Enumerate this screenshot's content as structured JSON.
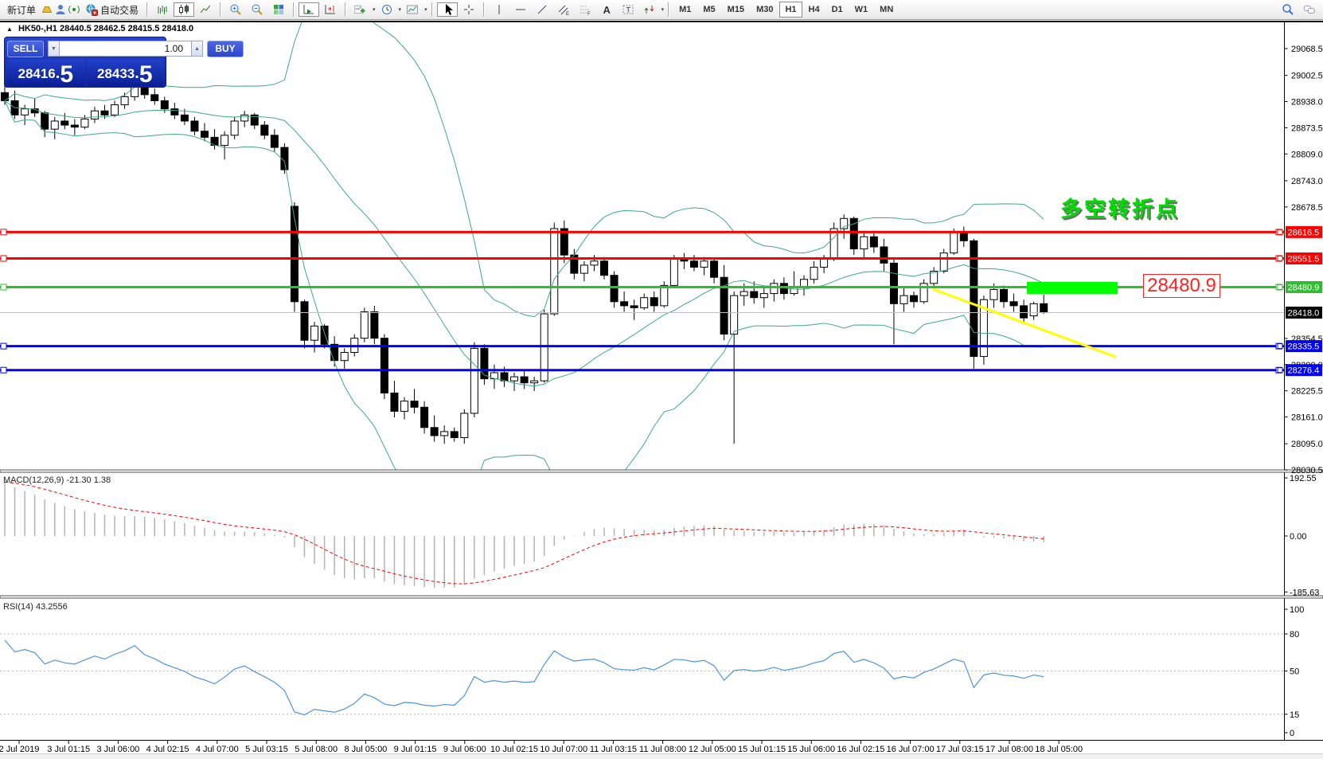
{
  "toolbar": {
    "new_order_label": "新订单",
    "auto_trading_label": "自动交易",
    "dropdown_icon": "▾",
    "timeframes": [
      "M1",
      "M5",
      "M15",
      "M30",
      "H1",
      "H4",
      "D1",
      "W1",
      "MN"
    ],
    "active_timeframe": "H1",
    "icon_names": [
      "gold-ingot-icon",
      "profile-icon",
      "signal-icon",
      "auto-trading-icon",
      "bar-chart-icon",
      "candlestick-chart-icon",
      "line-chart-icon",
      "zoom-in-icon",
      "zoom-out-icon",
      "tile-windows-icon",
      "auto-scroll-icon",
      "chart-shift-icon",
      "indicators-icon",
      "periods-icon",
      "templates-icon",
      "cursor-icon",
      "crosshair-icon",
      "vertical-line-icon",
      "horizontal-line-icon",
      "trendline-icon",
      "equidistant-channel-icon",
      "fibonacci-icon",
      "text-icon",
      "text-label-icon",
      "arrow-shapes-icon",
      "search-icon",
      "chat-icon"
    ]
  },
  "chart_window": {
    "collapse_icon": "▲",
    "symbol_period": "HK50-,H1",
    "ohlc_text": "28440.5 28462.5 28415.5 28418.0"
  },
  "trade_panel": {
    "sell_label": "SELL",
    "buy_label": "BUY",
    "volume": "1.00",
    "volume_down_icon": "▼",
    "volume_up_icon": "▲",
    "sell_price_int": "28416",
    "sell_price_frac": "5",
    "buy_price_int": "28433",
    "buy_price_frac": "5"
  },
  "annotations": {
    "turning_point_label": "多空转折点",
    "price_tag": "28480.9"
  },
  "panes": {
    "macd_label": "MACD(12,26,9) -21.30 1.38",
    "rsi_label": "RSI(14) 43.2556"
  },
  "chart_data": {
    "type": "candlestick",
    "symbol": "HK50-",
    "period": "H1",
    "current_ohlc": {
      "open": 28440.5,
      "high": 28462.5,
      "low": 28415.5,
      "close": 28418.0
    },
    "bid": 28416.5,
    "ask": 28433.5,
    "price_axis_ticks": [
      29068.5,
      29002.5,
      28938.0,
      28873.5,
      28809.0,
      28743.0,
      28678.5,
      28354.5,
      28290.0,
      28225.5,
      28161.0,
      28095.0,
      28030.5
    ],
    "hlines": [
      {
        "price": 28616.5,
        "color": "#ff0000",
        "width": 3
      },
      {
        "price": 28551.5,
        "color": "#ff0000",
        "width": 3
      },
      {
        "price": 28480.9,
        "color": "#2fbe2f",
        "width": 3
      },
      {
        "price": 28418.0,
        "color": "#c0c0c0",
        "width": 1,
        "tag_bg": "#000000"
      },
      {
        "price": 28335.5,
        "color": "#0000ff",
        "width": 3
      },
      {
        "price": 28276.4,
        "color": "#0000ff",
        "width": 3
      }
    ],
    "candles": [
      [
        28960,
        28990,
        28930,
        28940
      ],
      [
        28940,
        28965,
        28895,
        28905
      ],
      [
        28905,
        28930,
        28880,
        28920
      ],
      [
        28920,
        28945,
        28900,
        28910
      ],
      [
        28910,
        28915,
        28850,
        28870
      ],
      [
        28870,
        28900,
        28845,
        28890
      ],
      [
        28890,
        28910,
        28870,
        28880
      ],
      [
        28880,
        28895,
        28855,
        28875
      ],
      [
        28875,
        28905,
        28870,
        28895
      ],
      [
        28895,
        28925,
        28885,
        28915
      ],
      [
        28915,
        28930,
        28895,
        28905
      ],
      [
        28905,
        28940,
        28900,
        28930
      ],
      [
        28930,
        28960,
        28920,
        28950
      ],
      [
        28950,
        28995,
        28940,
        28985
      ],
      [
        28985,
        28990,
        28945,
        28955
      ],
      [
        28955,
        28970,
        28930,
        28940
      ],
      [
        28940,
        28950,
        28910,
        28920
      ],
      [
        28920,
        28935,
        28895,
        28905
      ],
      [
        28905,
        28920,
        28880,
        28890
      ],
      [
        28890,
        28900,
        28855,
        28865
      ],
      [
        28865,
        28885,
        28840,
        28850
      ],
      [
        28850,
        28870,
        28820,
        28830
      ],
      [
        28830,
        28865,
        28795,
        28855
      ],
      [
        28855,
        28900,
        28845,
        28890
      ],
      [
        28890,
        28915,
        28875,
        28905
      ],
      [
        28905,
        28910,
        28870,
        28880
      ],
      [
        28880,
        28890,
        28845,
        28855
      ],
      [
        28855,
        28870,
        28815,
        28825
      ],
      [
        28825,
        28835,
        28760,
        28770
      ],
      [
        28680,
        28690,
        28420,
        28445
      ],
      [
        28445,
        28450,
        28330,
        28350
      ],
      [
        28350,
        28395,
        28320,
        28385
      ],
      [
        28385,
        28390,
        28330,
        28340
      ],
      [
        28340,
        28360,
        28285,
        28300
      ],
      [
        28300,
        28330,
        28280,
        28320
      ],
      [
        28320,
        28365,
        28310,
        28355
      ],
      [
        28355,
        28430,
        28345,
        28420
      ],
      [
        28420,
        28435,
        28340,
        28355
      ],
      [
        28355,
        28365,
        28205,
        28220
      ],
      [
        28220,
        28250,
        28160,
        28175
      ],
      [
        28175,
        28210,
        28155,
        28200
      ],
      [
        28200,
        28230,
        28170,
        28185
      ],
      [
        28185,
        28200,
        28120,
        28135
      ],
      [
        28135,
        28165,
        28100,
        28115
      ],
      [
        28115,
        28140,
        28095,
        28125
      ],
      [
        28125,
        28135,
        28100,
        28110
      ],
      [
        28110,
        28180,
        28095,
        28170
      ],
      [
        28170,
        28345,
        28160,
        28330
      ],
      [
        28330,
        28340,
        28240,
        28255
      ],
      [
        28255,
        28290,
        28230,
        28270
      ],
      [
        28270,
        28285,
        28235,
        28250
      ],
      [
        28250,
        28270,
        28225,
        28260
      ],
      [
        28260,
        28275,
        28230,
        28245
      ],
      [
        28245,
        28260,
        28225,
        28250
      ],
      [
        28250,
        28425,
        28245,
        28415
      ],
      [
        28415,
        28640,
        28410,
        28625
      ],
      [
        28625,
        28645,
        28540,
        28560
      ],
      [
        28560,
        28575,
        28500,
        28515
      ],
      [
        28515,
        28545,
        28495,
        28535
      ],
      [
        28535,
        28560,
        28520,
        28545
      ],
      [
        28545,
        28555,
        28500,
        28510
      ],
      [
        28510,
        28520,
        28430,
        28445
      ],
      [
        28445,
        28470,
        28420,
        28435
      ],
      [
        28435,
        28450,
        28400,
        28430
      ],
      [
        28430,
        28465,
        28425,
        28455
      ],
      [
        28455,
        28470,
        28420,
        28435
      ],
      [
        28435,
        28495,
        28430,
        28485
      ],
      [
        28485,
        28560,
        28480,
        28550
      ],
      [
        28550,
        28565,
        28525,
        28545
      ],
      [
        28545,
        28560,
        28520,
        28530
      ],
      [
        28530,
        28555,
        28510,
        28545
      ],
      [
        28545,
        28550,
        28490,
        28505
      ],
      [
        28505,
        28535,
        28350,
        28365
      ],
      [
        28365,
        28470,
        28095,
        28460
      ],
      [
        28460,
        28490,
        28435,
        28470
      ],
      [
        28470,
        28495,
        28440,
        28455
      ],
      [
        28455,
        28480,
        28430,
        28465
      ],
      [
        28465,
        28500,
        28445,
        28490
      ],
      [
        28490,
        28505,
        28450,
        28465
      ],
      [
        28465,
        28520,
        28460,
        28480
      ],
      [
        28480,
        28510,
        28460,
        28500
      ],
      [
        28500,
        28545,
        28490,
        28530
      ],
      [
        28530,
        28560,
        28515,
        28550
      ],
      [
        28550,
        28640,
        28545,
        28625
      ],
      [
        28625,
        28660,
        28600,
        28650
      ],
      [
        28650,
        28655,
        28560,
        28575
      ],
      [
        28575,
        28615,
        28550,
        28605
      ],
      [
        28605,
        28620,
        28565,
        28580
      ],
      [
        28580,
        28600,
        28520,
        28540
      ],
      [
        28540,
        28550,
        28340,
        28440
      ],
      [
        28440,
        28480,
        28420,
        28460
      ],
      [
        28460,
        28470,
        28430,
        28445
      ],
      [
        28445,
        28500,
        28440,
        28490
      ],
      [
        28490,
        28530,
        28480,
        28520
      ],
      [
        28520,
        28575,
        28515,
        28565
      ],
      [
        28565,
        28625,
        28560,
        28615
      ],
      [
        28615,
        28630,
        28580,
        28595
      ],
      [
        28595,
        28600,
        28280,
        28310
      ],
      [
        28310,
        28460,
        28290,
        28450
      ],
      [
        28450,
        28490,
        28430,
        28475
      ],
      [
        28475,
        28485,
        28430,
        28445
      ],
      [
        28445,
        28465,
        28420,
        28435
      ],
      [
        28435,
        28450,
        28390,
        28405
      ],
      [
        28410,
        28445,
        28400,
        28440
      ],
      [
        28440,
        28462,
        28415,
        28418
      ]
    ],
    "bollinger": {
      "period": 20,
      "deviation": 2,
      "color": "#3faa7f"
    },
    "macd": {
      "fast": 12,
      "slow": 26,
      "signal": 9,
      "main_value": -21.3,
      "signal_value": 1.38,
      "axis_ticks": [
        192.55,
        0.0,
        -185.63
      ],
      "histogram_color": "#b3b3b3",
      "signal_color": "#ff0000"
    },
    "rsi": {
      "period": 14,
      "value": 43.2556,
      "axis_ticks": [
        100,
        80,
        50,
        15,
        0
      ],
      "levels": [
        80,
        50,
        15
      ],
      "color": "#4f94d8"
    },
    "time_labels": [
      "2 Jul 2019",
      "3 Jul 01:15",
      "3 Jul 06:00",
      "4 Jul 02:15",
      "4 Jul 07:00",
      "5 Jul 03:15",
      "5 Jul 08:00",
      "8 Jul 05:00",
      "9 Jul 01:15",
      "9 Jul 06:00",
      "10 Jul 02:15",
      "10 Jul 07:00",
      "11 Jul 03:15",
      "11 Jul 08:00",
      "12 Jul 05:00",
      "15 Jul 01:15",
      "15 Jul 06:00",
      "16 Jul 02:15",
      "16 Jul 07:00",
      "17 Jul 03:15",
      "17 Jul 08:00",
      "18 Jul 05:00"
    ],
    "trendline": {
      "color": "#ffff00",
      "from_bar": 92.9,
      "from_price": 28476,
      "to_bar": 111.2,
      "to_price": 28309
    },
    "highlight": {
      "color": "#00ff00",
      "from_bar": 102.3,
      "to_bar": 111.4,
      "price": 28480.9,
      "thickness": 15
    }
  }
}
